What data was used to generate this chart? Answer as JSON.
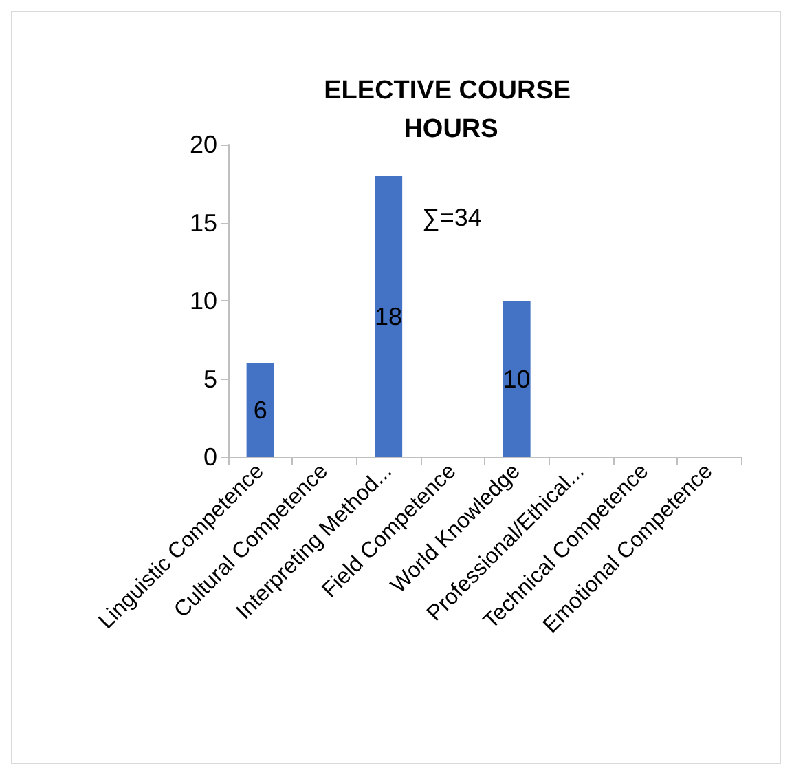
{
  "chart_data": {
    "type": "bar",
    "title": "ELECTIVE COURSE HOURS",
    "categories": [
      "Linguistic Competence",
      "Cultural Competence",
      "Interpreting Method...",
      "Field Competence",
      "World Knowledge",
      "Professional/Ethical...",
      "Technical Competence",
      "Emotional Competence"
    ],
    "values": [
      6,
      0,
      18,
      0,
      10,
      0,
      0,
      0
    ],
    "value_labels": [
      "6",
      null,
      "18",
      null,
      "10",
      null,
      null,
      null
    ],
    "color": "#4472c4",
    "ylim": [
      0,
      20
    ],
    "yticks": [
      0,
      5,
      10,
      15,
      20
    ],
    "grid": false,
    "annotations": [
      {
        "text": "∑=34"
      }
    ]
  }
}
